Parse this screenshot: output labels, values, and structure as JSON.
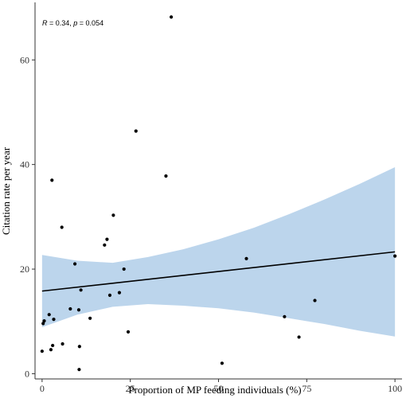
{
  "chart_data": {
    "type": "scatter",
    "xlabel": "Proportion of MP feeding individuals (%)",
    "ylabel": "Citation rate per year",
    "xlim": [
      -2,
      102
    ],
    "ylim": [
      -1,
      71
    ],
    "x_ticks": [
      0,
      25,
      50,
      75,
      100
    ],
    "x_tick_labels": [
      "0",
      "25",
      "50",
      "75",
      "100"
    ],
    "y_ticks": [
      0,
      20,
      40,
      60
    ],
    "y_tick_labels": [
      "0",
      "20",
      "40",
      "60"
    ],
    "grid": false,
    "annotation": {
      "r_label": "R",
      "r_text": " = 0.34, ",
      "p_label": "p",
      "p_text": " = 0.054"
    },
    "points": [
      {
        "x": 0.0,
        "y": 4.3
      },
      {
        "x": 0.3,
        "y": 9.6
      },
      {
        "x": 0.6,
        "y": 10.1
      },
      {
        "x": 2.0,
        "y": 11.3
      },
      {
        "x": 2.5,
        "y": 4.6
      },
      {
        "x": 2.8,
        "y": 37.0
      },
      {
        "x": 3.0,
        "y": 5.4
      },
      {
        "x": 3.3,
        "y": 10.4
      },
      {
        "x": 5.6,
        "y": 28.0
      },
      {
        "x": 5.8,
        "y": 5.7
      },
      {
        "x": 8.0,
        "y": 12.4
      },
      {
        "x": 9.3,
        "y": 21.0
      },
      {
        "x": 10.4,
        "y": 12.2
      },
      {
        "x": 10.5,
        "y": 0.8
      },
      {
        "x": 10.6,
        "y": 5.2
      },
      {
        "x": 11.0,
        "y": 16.0
      },
      {
        "x": 13.6,
        "y": 10.6
      },
      {
        "x": 17.7,
        "y": 24.6
      },
      {
        "x": 18.4,
        "y": 25.7
      },
      {
        "x": 19.2,
        "y": 15.0
      },
      {
        "x": 20.2,
        "y": 30.3
      },
      {
        "x": 21.9,
        "y": 15.5
      },
      {
        "x": 23.2,
        "y": 20.0
      },
      {
        "x": 24.4,
        "y": 8.0
      },
      {
        "x": 26.6,
        "y": 46.4
      },
      {
        "x": 35.1,
        "y": 37.8
      },
      {
        "x": 36.6,
        "y": 68.2
      },
      {
        "x": 51.0,
        "y": 2.0
      },
      {
        "x": 57.9,
        "y": 22.0
      },
      {
        "x": 68.7,
        "y": 10.9
      },
      {
        "x": 72.8,
        "y": 7.0
      },
      {
        "x": 77.3,
        "y": 14.0
      },
      {
        "x": 100.0,
        "y": 22.5
      }
    ],
    "fit_line": {
      "x": [
        0,
        100
      ],
      "y": [
        15.8,
        23.3
      ]
    },
    "confidence_band": {
      "x": [
        0,
        10,
        20,
        30,
        40,
        50,
        60,
        70,
        80,
        90,
        100
      ],
      "upper": [
        22.7,
        21.6,
        21.2,
        22.3,
        23.8,
        25.7,
        27.9,
        30.5,
        33.3,
        36.3,
        39.5
      ],
      "lower": [
        8.9,
        11.3,
        12.8,
        13.3,
        13.0,
        12.5,
        11.7,
        10.6,
        9.5,
        8.2,
        7.1
      ]
    },
    "colors": {
      "points": "#000000",
      "fit_line": "#000000",
      "band": "#bcd5ec",
      "axis": "#333333"
    }
  }
}
